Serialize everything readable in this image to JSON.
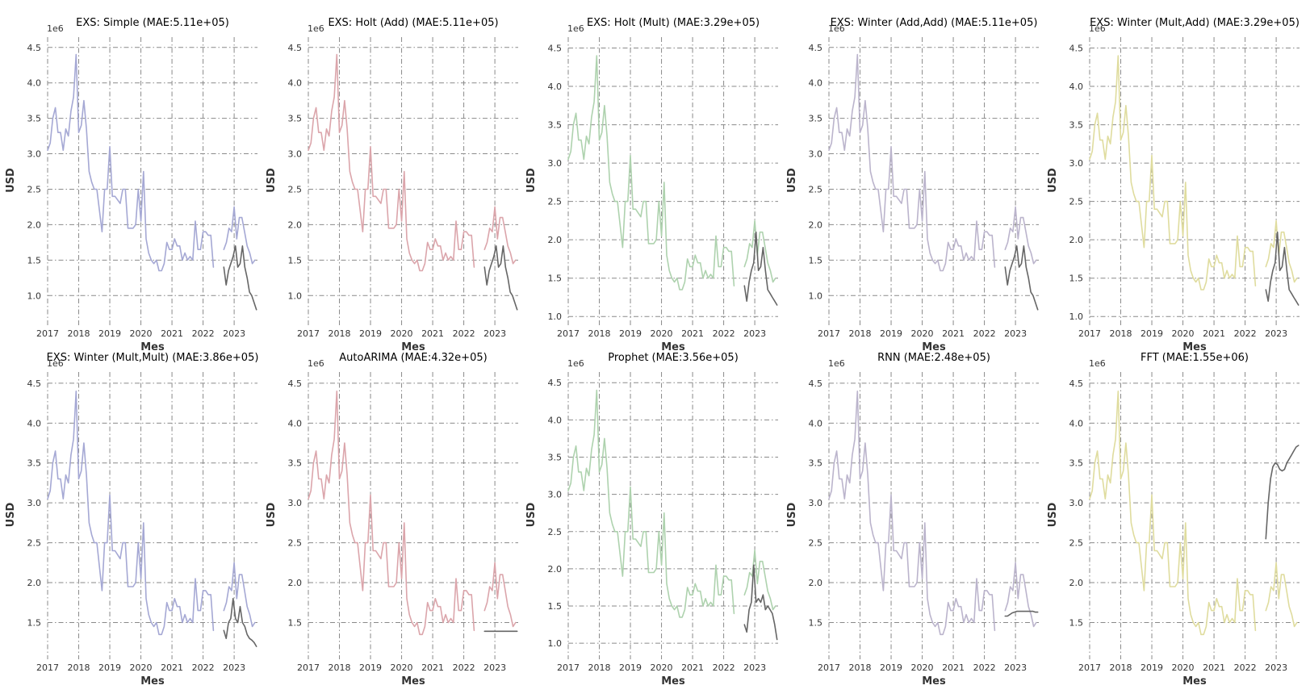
{
  "figure": {
    "x_axis_label": "Mes",
    "y_axis_label": "USD",
    "y_offset_label": "1e6"
  },
  "colors": {
    "blue": "#a5a8d4",
    "red": "#dba5ab",
    "green": "#aed2ae",
    "purple": "#bbb4cc",
    "yellow": "#dfdc9e",
    "forecast": "#666666"
  },
  "history": [
    3.05,
    3.15,
    3.5,
    3.65,
    3.3,
    3.3,
    3.05,
    3.35,
    3.25,
    3.6,
    3.8,
    4.4,
    3.3,
    3.4,
    3.75,
    3.35,
    2.75,
    2.6,
    2.5,
    2.5,
    2.2,
    1.9,
    2.5,
    2.5,
    3.1,
    2.4,
    2.4,
    2.35,
    2.3,
    2.5,
    2.5,
    1.95,
    1.95,
    1.95,
    2.0,
    2.5,
    2.05,
    2.75,
    1.8,
    1.6,
    1.5,
    1.45,
    1.5,
    1.35,
    1.35,
    1.45,
    1.75,
    1.65,
    1.65,
    1.8,
    1.7,
    1.7,
    1.5,
    1.6,
    1.5,
    1.55,
    1.5,
    2.05,
    1.65,
    1.65,
    1.9,
    1.9,
    1.85,
    1.85,
    1.4
  ],
  "actual": [
    1.65,
    1.75,
    1.95,
    1.9,
    2.25,
    1.8,
    2.1,
    2.1,
    1.9,
    1.7,
    1.6,
    1.45,
    1.5
  ],
  "chart_data": [
    {
      "type": "line",
      "title": "EXS: Simple (MAE:5.11e+05)",
      "xlabel": "Mes",
      "ylabel": "USD",
      "color_key": "blue",
      "ylim": [
        0.65,
        4.6
      ],
      "yticks": [
        "1.0",
        "1.5",
        "2.0",
        "2.5",
        "3.0",
        "3.5",
        "4.0",
        "4.5"
      ],
      "xticks": [
        "2017",
        "2018",
        "2019",
        "2020",
        "2021",
        "2022",
        "2023"
      ],
      "forecast": [
        1.4,
        1.15,
        1.35,
        1.45,
        1.55,
        1.7,
        1.4,
        1.45,
        1.7,
        1.4,
        1.25,
        1.05,
        1.0,
        0.9,
        0.8
      ]
    },
    {
      "type": "line",
      "title": "EXS: Holt (Add) (MAE:5.11e+05)",
      "xlabel": "Mes",
      "ylabel": "USD",
      "color_key": "red",
      "ylim": [
        0.65,
        4.6
      ],
      "yticks": [
        "1.0",
        "1.5",
        "2.0",
        "2.5",
        "3.0",
        "3.5",
        "4.0",
        "4.5"
      ],
      "xticks": [
        "2017",
        "2018",
        "2019",
        "2020",
        "2021",
        "2022",
        "2023"
      ],
      "forecast": [
        1.4,
        1.15,
        1.35,
        1.45,
        1.55,
        1.7,
        1.4,
        1.45,
        1.7,
        1.4,
        1.25,
        1.05,
        1.0,
        0.9,
        0.8
      ]
    },
    {
      "type": "line",
      "title": "EXS: Holt (Mult) (MAE:3.29e+05)",
      "xlabel": "Mes",
      "ylabel": "USD",
      "color_key": "green",
      "ylim": [
        0.95,
        4.6
      ],
      "yticks": [
        "1.0",
        "1.5",
        "2.0",
        "2.5",
        "3.0",
        "3.5",
        "4.0",
        "4.5"
      ],
      "xticks": [
        "2017",
        "2018",
        "2019",
        "2020",
        "2021",
        "2022",
        "2023"
      ],
      "forecast": [
        1.4,
        1.2,
        1.45,
        1.6,
        1.7,
        2.1,
        1.6,
        1.65,
        1.9,
        1.6,
        1.35,
        1.3,
        1.25,
        1.2,
        1.15
      ]
    },
    {
      "type": "line",
      "title": "EXS: Winter (Add,Add) (MAE:5.11e+05)",
      "xlabel": "Mes",
      "ylabel": "USD",
      "color_key": "purple",
      "ylim": [
        0.65,
        4.6
      ],
      "yticks": [
        "1.0",
        "1.5",
        "2.0",
        "2.5",
        "3.0",
        "3.5",
        "4.0",
        "4.5"
      ],
      "xticks": [
        "2017",
        "2018",
        "2019",
        "2020",
        "2021",
        "2022",
        "2023"
      ],
      "forecast": [
        1.4,
        1.15,
        1.35,
        1.45,
        1.55,
        1.7,
        1.4,
        1.45,
        1.7,
        1.4,
        1.25,
        1.05,
        1.0,
        0.9,
        0.8
      ]
    },
    {
      "type": "line",
      "title": "EXS: Winter (Mult,Add) (MAE:3.29e+05)",
      "xlabel": "Mes",
      "ylabel": "USD",
      "color_key": "yellow",
      "ylim": [
        0.95,
        4.6
      ],
      "yticks": [
        "1.0",
        "1.5",
        "2.0",
        "2.5",
        "3.0",
        "3.5",
        "4.0",
        "4.5"
      ],
      "xticks": [
        "2017",
        "2018",
        "2019",
        "2020",
        "2021",
        "2022",
        "2023"
      ],
      "forecast": [
        1.35,
        1.2,
        1.45,
        1.6,
        1.7,
        2.1,
        1.6,
        1.65,
        1.9,
        1.6,
        1.35,
        1.3,
        1.25,
        1.2,
        1.15
      ]
    },
    {
      "type": "line",
      "title": "EXS: Winter (Mult,Mult) (MAE:3.86e+05)",
      "xlabel": "Mes",
      "ylabel": "USD",
      "color_key": "blue",
      "ylim": [
        1.1,
        4.6
      ],
      "yticks": [
        "1.5",
        "2.0",
        "2.5",
        "3.0",
        "3.5",
        "4.0",
        "4.5"
      ],
      "xticks": [
        "2017",
        "2018",
        "2019",
        "2020",
        "2021",
        "2022",
        "2023"
      ],
      "forecast": [
        1.4,
        1.3,
        1.5,
        1.55,
        1.8,
        1.55,
        1.5,
        1.7,
        1.5,
        1.45,
        1.35,
        1.3,
        1.28,
        1.25,
        1.2
      ]
    },
    {
      "type": "line",
      "title": "AutoARIMA (MAE:4.32e+05)",
      "xlabel": "Mes",
      "ylabel": "USD",
      "color_key": "red",
      "ylim": [
        1.1,
        4.6
      ],
      "yticks": [
        "1.5",
        "2.0",
        "2.5",
        "3.0",
        "3.5",
        "4.0",
        "4.5"
      ],
      "xticks": [
        "2017",
        "2018",
        "2019",
        "2020",
        "2021",
        "2022",
        "2023"
      ],
      "forecast": [
        1.39,
        1.39,
        1.39,
        1.39,
        1.39,
        1.39,
        1.39,
        1.39,
        1.39,
        1.39,
        1.39,
        1.39,
        1.39,
        1.39,
        1.39
      ]
    },
    {
      "type": "line",
      "title": "Prophet (MAE:3.56e+05)",
      "xlabel": "Mes",
      "ylabel": "USD",
      "color_key": "green",
      "ylim": [
        0.85,
        4.6
      ],
      "yticks": [
        "1.0",
        "1.5",
        "2.0",
        "2.5",
        "3.0",
        "3.5",
        "4.0",
        "4.5"
      ],
      "xticks": [
        "2017",
        "2018",
        "2019",
        "2020",
        "2021",
        "2022",
        "2023"
      ],
      "forecast": [
        1.25,
        1.15,
        1.45,
        1.55,
        2.05,
        1.55,
        1.6,
        1.55,
        1.65,
        1.45,
        1.5,
        1.45,
        1.4,
        1.25,
        1.05
      ]
    },
    {
      "type": "line",
      "title": "RNN (MAE:2.48e+05)",
      "xlabel": "Mes",
      "ylabel": "USD",
      "color_key": "purple",
      "ylim": [
        1.1,
        4.6
      ],
      "yticks": [
        "1.5",
        "2.0",
        "2.5",
        "3.0",
        "3.5",
        "4.0",
        "4.5"
      ],
      "xticks": [
        "2017",
        "2018",
        "2019",
        "2020",
        "2021",
        "2022",
        "2023"
      ],
      "forecast": [
        1.58,
        1.58,
        1.6,
        1.62,
        1.63,
        1.64,
        1.64,
        1.64,
        1.64,
        1.64,
        1.64,
        1.64,
        1.64,
        1.63,
        1.63
      ]
    },
    {
      "type": "line",
      "title": "FFT (MAE:1.55e+06)",
      "xlabel": "Mes",
      "ylabel": "USD",
      "color_key": "yellow",
      "ylim": [
        1.1,
        4.6
      ],
      "yticks": [
        "1.5",
        "2.0",
        "2.5",
        "3.0",
        "3.5",
        "4.0",
        "4.5"
      ],
      "xticks": [
        "2017",
        "2018",
        "2019",
        "2020",
        "2021",
        "2022",
        "2023"
      ],
      "forecast": [
        2.55,
        3.0,
        3.3,
        3.45,
        3.5,
        3.48,
        3.42,
        3.4,
        3.42,
        3.5,
        3.55,
        3.6,
        3.65,
        3.7,
        3.72
      ]
    }
  ]
}
